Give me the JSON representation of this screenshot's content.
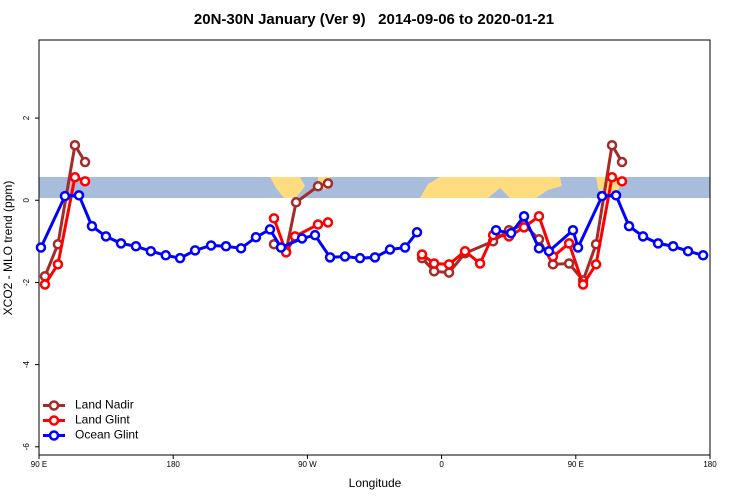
{
  "chart_data": {
    "type": "line",
    "title": "20N-30N January (Ver 9)   2014-09-06 to 2020-01-21",
    "xlabel": "Longitude",
    "ylabel": "XCO2 - MLO trend (ppm)",
    "xlim": [
      90,
      540
    ],
    "xticks": [
      {
        "value": 90,
        "label": "90 E"
      },
      {
        "value": 180,
        "label": "180"
      },
      {
        "value": 270,
        "label": "90 W"
      },
      {
        "value": 360,
        "label": "0"
      },
      {
        "value": 450,
        "label": "90 E"
      },
      {
        "value": 540,
        "label": "180"
      }
    ],
    "ylim": [
      -6.2,
      3.9
    ],
    "yticks": [
      -6,
      -4,
      -2,
      0,
      2
    ],
    "legend": "bottomleft",
    "series": [
      {
        "name": "Land Nadir",
        "color": "#a52a2a",
        "x": [
          94,
          102.7,
          114.1,
          120.9,
          null,
          247.6,
          255.7,
          262.4,
          277.1,
          283.8,
          null,
          346.9,
          355,
          365,
          375.7,
          394.5,
          405.2,
          415.3,
          425.3,
          434.7,
          445.5,
          454.9,
          463.6,
          474.3,
          481
        ],
        "values": [
          -1.85,
          -1.07,
          1.34,
          0.93,
          null,
          -1.07,
          -1.24,
          -0.05,
          0.34,
          0.41,
          null,
          -1.41,
          -1.73,
          -1.76,
          -1.29,
          -1.0,
          -0.73,
          -0.59,
          -0.95,
          -1.56,
          -1.54,
          -1.95,
          -1.07,
          1.34,
          0.93
        ]
      },
      {
        "name": "Land Glint",
        "color": "#ff0000",
        "x": [
          94,
          102.7,
          114.1,
          120.9,
          null,
          247.6,
          255.7,
          261.7,
          277.1,
          283.8,
          null,
          346.9,
          355,
          365,
          375.7,
          385.8,
          394.5,
          405.2,
          415.3,
          425.3,
          434.7,
          445.5,
          454.9,
          463.6,
          474.3,
          481
        ],
        "values": [
          -2.05,
          -1.56,
          0.56,
          0.46,
          null,
          -0.44,
          -1.27,
          -0.88,
          -0.59,
          -0.54,
          null,
          -1.32,
          -1.54,
          -1.56,
          -1.24,
          -1.54,
          -0.85,
          -0.88,
          -0.66,
          -0.39,
          -1.37,
          -1.05,
          -2.05,
          -1.56,
          0.56,
          0.46
        ]
      },
      {
        "name": "Ocean Glint",
        "color": "#0000ff",
        "x": [
          91.3,
          107.4,
          116.8,
          125.5,
          134.9,
          145,
          155,
          165,
          175,
          184.6,
          194.7,
          205.4,
          215.4,
          225.5,
          235.5,
          244.9,
          252.3,
          266.4,
          275.1,
          285.2,
          295.2,
          305.3,
          315.3,
          325.4,
          335.5,
          343.5,
          null,
          396.5,
          406.6,
          415.3,
          425.3,
          432,
          448.1,
          451.5,
          467.6,
          477,
          485.7,
          495.1,
          505.2,
          515.3,
          525.3,
          535.4
        ],
        "values": [
          -1.15,
          0.1,
          0.12,
          -0.63,
          -0.88,
          -1.05,
          -1.12,
          -1.24,
          -1.34,
          -1.41,
          -1.22,
          -1.1,
          -1.12,
          -1.17,
          -0.9,
          -0.71,
          -1.15,
          -0.93,
          -0.85,
          -1.39,
          -1.37,
          -1.41,
          -1.39,
          -1.2,
          -1.15,
          -0.78,
          null,
          -0.73,
          -0.8,
          -0.39,
          -1.17,
          -1.24,
          -0.73,
          -1.15,
          0.1,
          0.12,
          -0.63,
          -0.88,
          -1.05,
          -1.12,
          -1.24,
          -1.34
        ]
      }
    ]
  }
}
